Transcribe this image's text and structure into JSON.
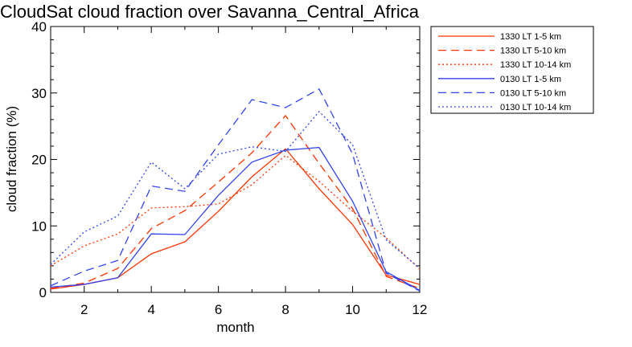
{
  "chart_data": {
    "type": "line",
    "title": "CloudSat cloud fraction over Savanna_Central_Africa",
    "xlabel": "month",
    "ylabel": "cloud fraction (%)",
    "xlim": [
      1,
      12
    ],
    "ylim": [
      0,
      40
    ],
    "xticks": [
      2,
      4,
      6,
      8,
      10,
      12
    ],
    "yticks": [
      0,
      10,
      20,
      30,
      40
    ],
    "grid": false,
    "legend_position": "outside-right-top",
    "x": [
      1,
      2,
      3,
      4,
      5,
      6,
      7,
      8,
      9,
      10,
      11,
      12
    ],
    "series": [
      {
        "name": "1330 LT 1-5 km",
        "color": "#ff3300",
        "dash": "solid",
        "values": [
          0.5,
          1.2,
          2.2,
          5.8,
          7.6,
          12.2,
          17.4,
          21.6,
          15.6,
          10.2,
          2.6,
          1.2
        ]
      },
      {
        "name": "1330 LT 5-10 km",
        "color": "#ff3300",
        "dash": "dashed",
        "values": [
          0.6,
          1.4,
          3.6,
          9.6,
          12.3,
          16.6,
          21.0,
          26.6,
          19.4,
          12.6,
          2.4,
          0.6
        ]
      },
      {
        "name": "1330 LT 10-14 km",
        "color": "#ff3300",
        "dash": "dotted",
        "values": [
          4.0,
          7.0,
          8.8,
          12.7,
          12.9,
          13.3,
          16.2,
          20.6,
          16.7,
          12.2,
          8.2,
          3.5
        ]
      },
      {
        "name": "0130 LT 1-5 km",
        "color": "#3344ee",
        "dash": "solid",
        "values": [
          0.8,
          1.2,
          2.2,
          8.8,
          8.7,
          14.6,
          19.6,
          21.4,
          21.8,
          13.7,
          3.1,
          0.3
        ]
      },
      {
        "name": "0130 LT 5-10 km",
        "color": "#3344ee",
        "dash": "dashed",
        "values": [
          1.0,
          3.2,
          4.8,
          16.0,
          15.2,
          22.2,
          29.0,
          27.8,
          30.6,
          20.8,
          2.9,
          0.2
        ]
      },
      {
        "name": "0130 LT 10-14 km",
        "color": "#3344ee",
        "dash": "dotted",
        "values": [
          4.2,
          9.1,
          11.5,
          19.6,
          15.6,
          20.8,
          21.9,
          21.2,
          27.2,
          22.2,
          7.9,
          3.6
        ]
      }
    ]
  }
}
